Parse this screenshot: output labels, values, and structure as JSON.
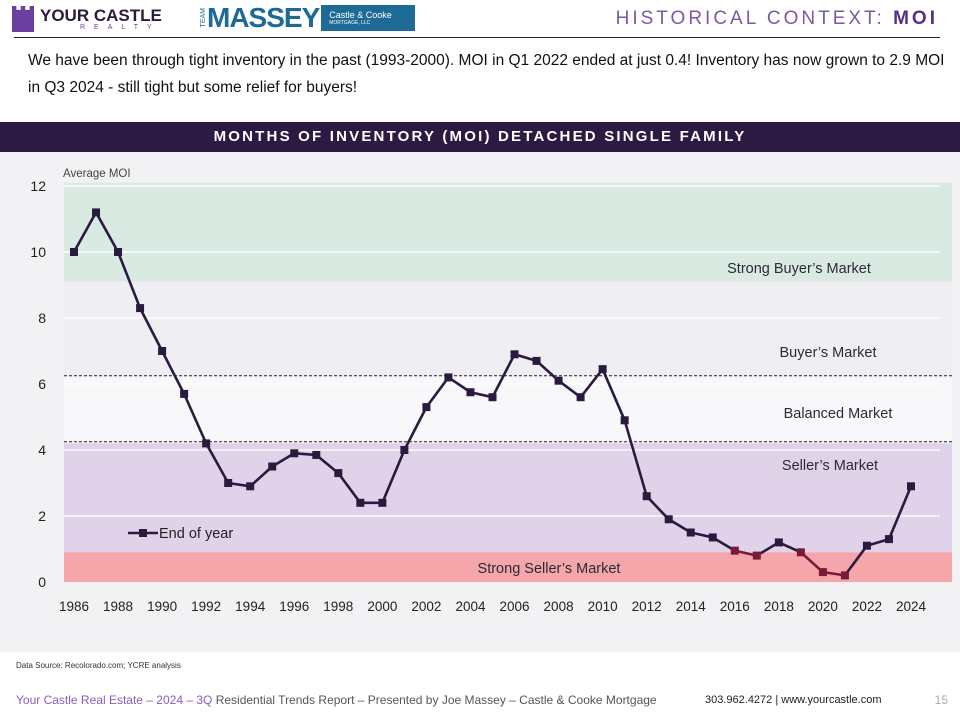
{
  "header": {
    "logo1_main": "YOUR CASTLE",
    "logo1_sub": "REALTY",
    "logo2_team": "TEAM",
    "logo2_main": "MASSEY",
    "logo2_badge": "Castle & Cooke",
    "logo2_badge_sub": "MORTGAGE, LLC",
    "title_prefix": "HISTORICAL CONTEXT:",
    "title_bold": "MOI"
  },
  "intro": "We have been through tight inventory in the past (1993-2000). MOI in Q1 2022 ended at just 0.4! Inventory has now grown to 2.9 MOI in Q3 2024 - still tight but some relief for buyers!",
  "chart_title": "MONTHS OF INVENTORY (MOI) DETACHED SINGLE FAMILY",
  "chart_data": {
    "type": "line",
    "title": "MONTHS OF INVENTORY (MOI) DETACHED SINGLE FAMILY",
    "ylabel": "Average MOI",
    "xlabel": "",
    "ylim": [
      0,
      12
    ],
    "yticks": [
      0,
      2,
      4,
      6,
      8,
      10,
      12
    ],
    "xticks": [
      1986,
      1988,
      1990,
      1992,
      1994,
      1996,
      1998,
      2000,
      2002,
      2004,
      2006,
      2008,
      2010,
      2012,
      2014,
      2016,
      2018,
      2020,
      2022,
      2024
    ],
    "legend": "bottom-left",
    "grid": true,
    "series": [
      {
        "name": "End of year",
        "color": "#2b1a40",
        "highlight_color": "#7a1a3a",
        "x": [
          1986,
          1987,
          1988,
          1989,
          1990,
          1991,
          1992,
          1993,
          1994,
          1995,
          1996,
          1997,
          1998,
          1999,
          2000,
          2001,
          2002,
          2003,
          2004,
          2005,
          2006,
          2007,
          2008,
          2009,
          2010,
          2011,
          2012,
          2013,
          2014,
          2015,
          2016,
          2017,
          2018,
          2019,
          2020,
          2021,
          2022,
          2023,
          2024
        ],
        "values": [
          10.0,
          11.2,
          10.0,
          8.3,
          7.0,
          5.7,
          4.2,
          3.0,
          2.9,
          3.5,
          3.9,
          3.85,
          3.3,
          2.4,
          2.4,
          4.0,
          5.3,
          6.2,
          5.75,
          5.6,
          6.9,
          6.7,
          6.1,
          5.6,
          6.45,
          4.9,
          2.6,
          1.9,
          1.5,
          1.35,
          0.95,
          0.8,
          1.2,
          0.9,
          0.3,
          0.2,
          1.1,
          1.3,
          2.9
        ]
      }
    ],
    "bands": [
      {
        "label": "Strong Buyer’s Market",
        "from": 9.1,
        "to": 12.1,
        "color": "#d9eae3"
      },
      {
        "label": "Buyer’s Market",
        "from": 6.25,
        "to": 9.1,
        "color": "#efeef2"
      },
      {
        "label": "Balanced Market",
        "from": 4.25,
        "to": 6.25,
        "color": "#f8f8fa"
      },
      {
        "label": "Seller’s Market",
        "from": 0.9,
        "to": 4.2,
        "color": "#e0d3e9"
      },
      {
        "label": "Strong Seller’s Market",
        "from": 0,
        "to": 0.9,
        "color": "#f4a6aa"
      }
    ],
    "reference_lines": [
      6.25,
      4.25
    ]
  },
  "source": "Data Source: Recolorado.com; YCRE analysis",
  "footer": {
    "left_colored": "Your Castle Real Estate – 2024 – 3Q",
    "left_rest": " Residential Trends Report – Presented by Joe Massey – Castle & Cooke Mortgage",
    "contact": "303.962.4272 | www.yourcastle.com",
    "page": "15"
  }
}
